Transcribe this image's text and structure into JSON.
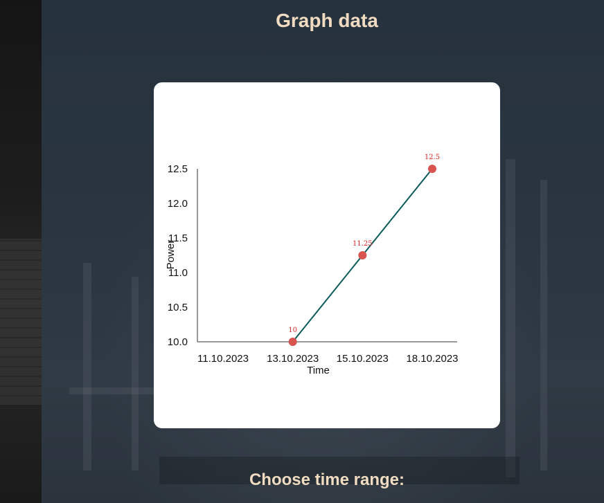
{
  "page": {
    "title": "Graph data",
    "time_range_label": "Choose time range:"
  },
  "chart_data": {
    "type": "line",
    "xlabel": "Time",
    "ylabel": "Power",
    "x_ticks": [
      "11.10.2023",
      "13.10.2023",
      "15.10.2023",
      "18.10.2023"
    ],
    "points": [
      {
        "x": "13.10.2023",
        "y": 10,
        "label": "10"
      },
      {
        "x": "15.10.2023",
        "y": 11.25,
        "label": "11.25"
      },
      {
        "x": "18.10.2023",
        "y": 12.5,
        "label": "12.5"
      }
    ],
    "y_ticks": [
      "10.0",
      "10.5",
      "11.0",
      "11.5",
      "12.0",
      "12.5"
    ],
    "ylim": [
      10,
      12.5
    ],
    "line_color": "#0b5a5a",
    "point_color": "#d9534f",
    "label_color": "#d62828",
    "grid": false
  }
}
